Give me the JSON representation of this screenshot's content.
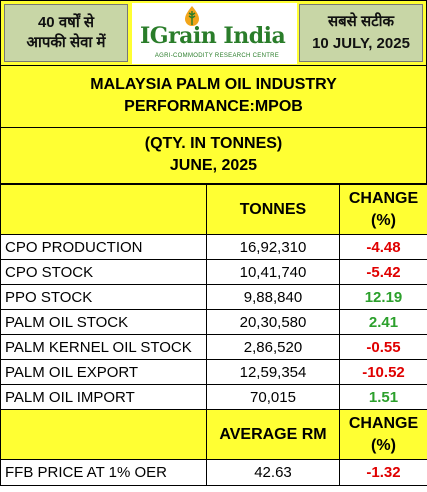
{
  "header": {
    "left_line1": "40 वर्षों से",
    "left_line2": "आपकी सेवा में",
    "brand": "IGrain India",
    "brand_sub": "AGRI-COMMODITY RESEARCH CENTRE",
    "right_line1": "सबसे सटीक",
    "right_line2": "10 JULY, 2025"
  },
  "title": {
    "line1": "MALAYSIA PALM OIL INDUSTRY",
    "line2": "PERFORMANCE:MPOB"
  },
  "units": {
    "line1": "(QTY. IN TONNES)",
    "line2": "JUNE, 2025"
  },
  "table": {
    "col_tonnes": "TONNES",
    "col_change_1": "CHANGE",
    "col_change_2": "(%)",
    "rows": [
      {
        "label": "CPO PRODUCTION",
        "tonnes": "16,92,310",
        "change": "-4.48"
      },
      {
        "label": "CPO STOCK",
        "tonnes": "10,41,740",
        "change": "-5.42"
      },
      {
        "label": "PPO STOCK",
        "tonnes": "9,88,840",
        "change": "12.19"
      },
      {
        "label": "PALM OIL STOCK",
        "tonnes": "20,30,580",
        "change": "2.41"
      },
      {
        "label": "PALM KERNEL OIL STOCK",
        "tonnes": "2,86,520",
        "change": "-0.55"
      },
      {
        "label": "PALM OIL EXPORT",
        "tonnes": "12,59,354",
        "change": "-10.52"
      },
      {
        "label": "PALM OIL IMPORT",
        "tonnes": "70,015",
        "change": "1.51"
      }
    ],
    "avg_header": "AVERAGE RM",
    "avg_change_1": "CHANGE",
    "avg_change_2": "(%)",
    "price_row": {
      "label": "FFB PRICE AT 1% OER",
      "value": "42.63",
      "change": "-1.32"
    }
  },
  "colors": {
    "background_yellow": "#ffff33",
    "badge_green_gray": "#c8d6a6",
    "negative": "#e00000",
    "positive": "#2ca02c",
    "brand_green": "#2a7d2a"
  }
}
